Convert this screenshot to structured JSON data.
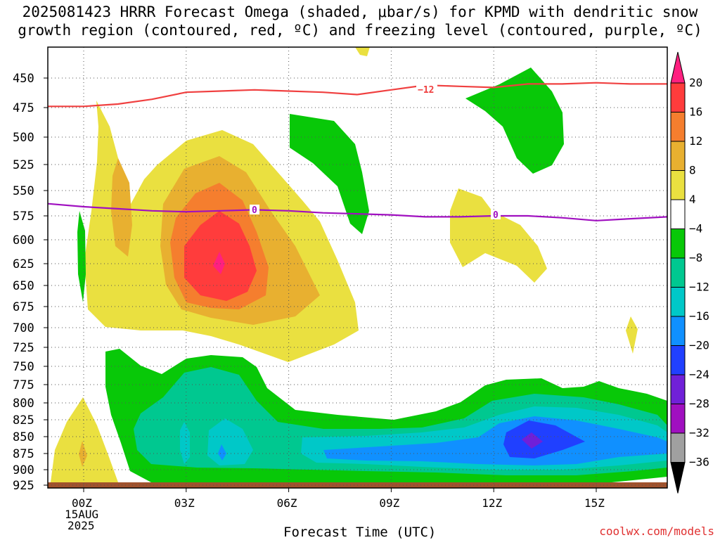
{
  "title_line1": "2025081423 HRRR Forecast Omega (shaded, μbar/s) for KPMD with dendritic snow",
  "title_line2": "growth region (contoured, red, ºC) and freezing level (contoured, purple, ºC)",
  "credit": "coolwx.com/models",
  "chart_data": {
    "type": "contour",
    "xlabel": "Forecast Time (UTC)",
    "x_ticks": [
      "00Z",
      "03Z",
      "06Z",
      "09Z",
      "12Z",
      "15Z"
    ],
    "x_tick_hours": [
      0,
      3,
      6,
      9,
      12,
      15
    ],
    "x_date_label": "15AUG",
    "x_year_label": "2025",
    "xlim_hours": [
      -1,
      17
    ],
    "y_ticks": [
      450,
      475,
      500,
      525,
      550,
      575,
      600,
      625,
      650,
      675,
      700,
      725,
      750,
      775,
      800,
      825,
      850,
      875,
      900,
      925
    ],
    "ylim_hPa": [
      420,
      930
    ],
    "colorbar": {
      "labels": [
        "20",
        "16",
        "12",
        "8",
        "4",
        "−4",
        "−8",
        "−12",
        "−16",
        "−20",
        "−24",
        "−28",
        "−32",
        "−36"
      ],
      "colors": [
        "#ff2080",
        "#ff3c3c",
        "#f57e2e",
        "#e8b030",
        "#eae040",
        "#ffffff",
        "#08c808",
        "#00c890",
        "#00c8c8",
        "#1090ff",
        "#2040ff",
        "#7020d8",
        "#a010c0",
        "#a0a0a0",
        "#000000"
      ]
    },
    "contours": [
      {
        "name": "dendritic snow growth",
        "label": "−12",
        "color": "#f04040",
        "x": [
          -1,
          0,
          1,
          2,
          3,
          4,
          5,
          6,
          7,
          8,
          9,
          10,
          11,
          12,
          13,
          14,
          15,
          16,
          17
        ],
        "y": [
          474,
          474,
          472,
          468,
          462,
          461,
          460,
          461,
          462,
          464,
          460,
          456,
          457,
          458,
          455,
          455,
          454,
          455,
          455
        ]
      },
      {
        "name": "freezing level",
        "label": "0",
        "color": "#a010c0",
        "x": [
          -1,
          0,
          1,
          2,
          3,
          4,
          5,
          6,
          7,
          8,
          9,
          10,
          11,
          12,
          13,
          14,
          15,
          16,
          17
        ],
        "y": [
          563,
          566,
          568,
          570,
          571,
          570,
          569,
          570,
          572,
          573,
          574,
          576,
          576,
          575,
          575,
          577,
          580,
          578,
          576
        ]
      }
    ],
    "omega_regions": [
      {
        "level": "4",
        "color": "#eae040",
        "x": [
          -1,
          17
        ]
      },
      {
        "level": "8",
        "color": "#e8b030"
      },
      {
        "level": "12",
        "color": "#f57e2e"
      },
      {
        "level": "16",
        "color": "#ff3c3c"
      },
      {
        "level": "20",
        "color": "#ff2080"
      },
      {
        "level": "−4",
        "color": "#08c808"
      },
      {
        "level": "−8",
        "color": "#00c890"
      },
      {
        "level": "−12",
        "color": "#00c8c8"
      },
      {
        "level": "−16",
        "color": "#1090ff"
      },
      {
        "level": "−20",
        "color": "#2040ff"
      },
      {
        "level": "−24",
        "color": "#7020d8"
      }
    ],
    "ground_color": "#a0522d"
  }
}
